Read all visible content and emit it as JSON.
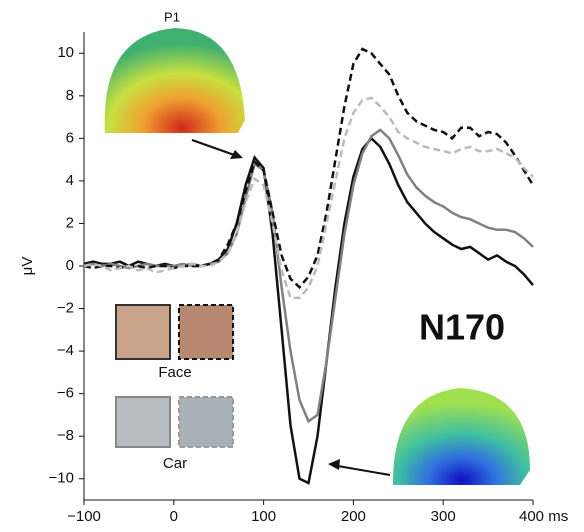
{
  "chart_data": {
    "type": "line",
    "y_label": "μV",
    "annotations": {
      "p1": "P1",
      "n170": "N170",
      "face": "Face",
      "car": "Car"
    },
    "x": [
      -100,
      -90,
      -80,
      -70,
      -60,
      -50,
      -40,
      -30,
      -20,
      -10,
      0,
      10,
      20,
      30,
      40,
      50,
      60,
      70,
      80,
      90,
      100,
      110,
      120,
      130,
      140,
      150,
      160,
      170,
      180,
      190,
      200,
      210,
      220,
      230,
      240,
      250,
      260,
      270,
      280,
      290,
      300,
      310,
      320,
      330,
      340,
      350,
      360,
      370,
      380,
      390,
      400
    ],
    "series": [
      {
        "color": "#111111",
        "dash": false,
        "values": [
          0.1,
          0.2,
          0.1,
          0.1,
          0.2,
          0,
          0.2,
          0.1,
          0,
          0.1,
          0,
          0,
          0.1,
          0,
          0.1,
          0.3,
          0.8,
          2,
          3.8,
          5.1,
          4.6,
          1.5,
          -3,
          -7.5,
          -10,
          -10.2,
          -8,
          -4.5,
          -1,
          2,
          4.2,
          5.5,
          6,
          5.6,
          4.8,
          3.8,
          3,
          2.5,
          2,
          1.6,
          1.3,
          1,
          0.8,
          0.9,
          0.6,
          0.3,
          0.5,
          0.2,
          0,
          -0.4,
          -0.9
        ]
      },
      {
        "color": "#808080",
        "dash": false,
        "values": [
          0,
          0.1,
          0,
          0.1,
          0,
          -0.1,
          0,
          0.1,
          0,
          0,
          0,
          0.1,
          0,
          0,
          0.1,
          0.2,
          0.6,
          1.5,
          3.2,
          4.8,
          4.5,
          2.5,
          -1,
          -4,
          -6.3,
          -7.3,
          -7,
          -4.5,
          -1.5,
          1.5,
          3.8,
          5.3,
          6.1,
          6.4,
          6,
          5.2,
          4.3,
          3.7,
          3.3,
          3,
          2.8,
          2.5,
          2.3,
          2.2,
          2,
          1.8,
          1.7,
          1.7,
          1.6,
          1.3,
          0.9
        ]
      },
      {
        "color": "#111111",
        "dash": true,
        "values": [
          0,
          -0.1,
          0,
          0,
          -0.1,
          0,
          0,
          -0.1,
          0,
          0,
          -0.1,
          0,
          0,
          0,
          0.1,
          0.3,
          1,
          2,
          3.5,
          4.9,
          4.5,
          2.5,
          0.5,
          -0.6,
          -1,
          -0.5,
          0.5,
          2.5,
          5,
          7.5,
          9.5,
          10.2,
          10,
          9.5,
          9,
          8,
          7.2,
          6.8,
          6.6,
          6.4,
          6.3,
          6,
          6.5,
          6.5,
          6.1,
          6.3,
          6.2,
          5.8,
          5.2,
          4.5,
          3.8
        ]
      },
      {
        "color": "#bbbbbb",
        "dash": true,
        "values": [
          0,
          0.1,
          0,
          -0.2,
          -0.1,
          0,
          -0.2,
          -0.1,
          -0.3,
          -0.2,
          -0.1,
          0,
          0.1,
          0,
          0,
          0.2,
          0.6,
          1.5,
          3,
          4.1,
          3.8,
          2,
          -0.2,
          -1.5,
          -1.5,
          -1,
          0,
          2,
          4,
          6,
          7.2,
          7.8,
          7.9,
          7.5,
          7,
          6.3,
          6,
          5.8,
          5.6,
          5.5,
          5.4,
          5.3,
          5.5,
          5.6,
          5.4,
          5.4,
          5.5,
          5.3,
          5.1,
          4.6,
          4.2
        ]
      }
    ],
    "xlim": [
      -100,
      400
    ],
    "xticks": [
      {
        "value": -100,
        "label": "−100"
      },
      0,
      100,
      200,
      300,
      {
        "value": 400,
        "label": "400 ms"
      }
    ],
    "ylim": [
      -11,
      11
    ],
    "yticks": [
      {
        "value": -10,
        "label": "−10"
      },
      {
        "value": -8,
        "label": "−8"
      },
      {
        "value": -6,
        "label": "−6"
      },
      {
        "value": -4,
        "label": "−4"
      },
      {
        "value": -2,
        "label": "−2"
      },
      0,
      2,
      4,
      6,
      8,
      10
    ]
  }
}
